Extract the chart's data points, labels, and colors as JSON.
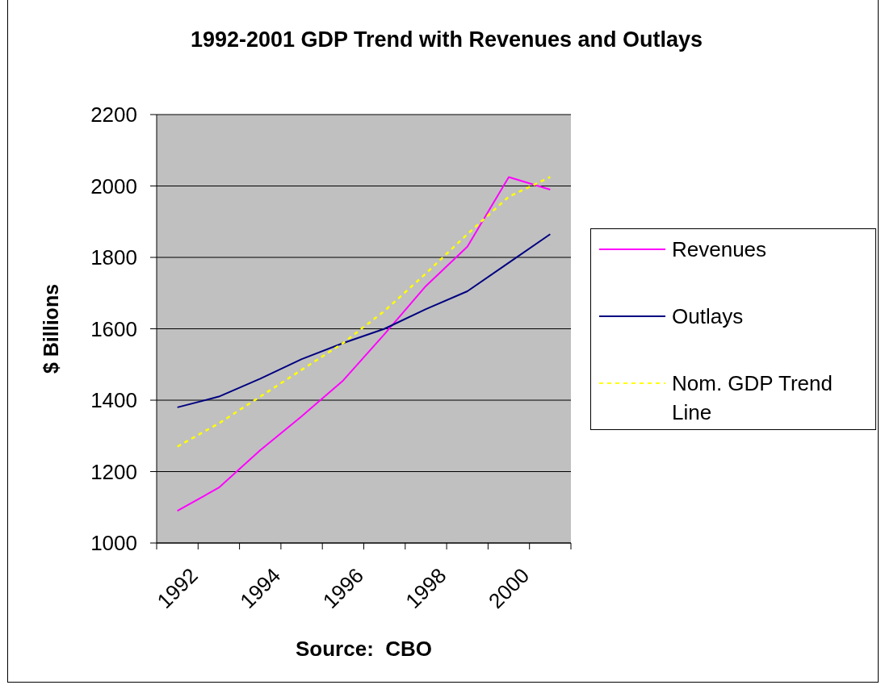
{
  "chart_data": {
    "type": "line",
    "title": "1992-2001 GDP Trend with Revenues and Outlays",
    "xlabel": "Source:  CBO",
    "ylabel": "$ Billions",
    "categories": [
      "1992",
      null,
      "1994",
      null,
      "1996",
      null,
      "1998",
      null,
      "2000",
      null
    ],
    "series": [
      {
        "name": "Revenues",
        "color": "#ff00ff",
        "values": [
          1090,
          1155,
          1260,
          1355,
          1455,
          1585,
          1720,
          1830,
          2025,
          1990
        ]
      },
      {
        "name": "Outlays",
        "color": "#000080",
        "values": [
          1380,
          1410,
          1460,
          1515,
          1560,
          1600,
          1655,
          1705,
          1785,
          1865
        ]
      },
      {
        "name": "Nom. GDP Trend Line",
        "color": "#ffff00",
        "line_style": "dashed",
        "values": [
          1270,
          1335,
          1410,
          1485,
          1560,
          1650,
          1755,
          1865,
          1970,
          2025
        ]
      }
    ],
    "ylim": [
      1000,
      2200
    ],
    "yticks": [
      1000,
      1200,
      1400,
      1600,
      1800,
      2000,
      2200
    ],
    "grid": "y",
    "legend": "right",
    "marker": "none",
    "line_style": "solid"
  }
}
